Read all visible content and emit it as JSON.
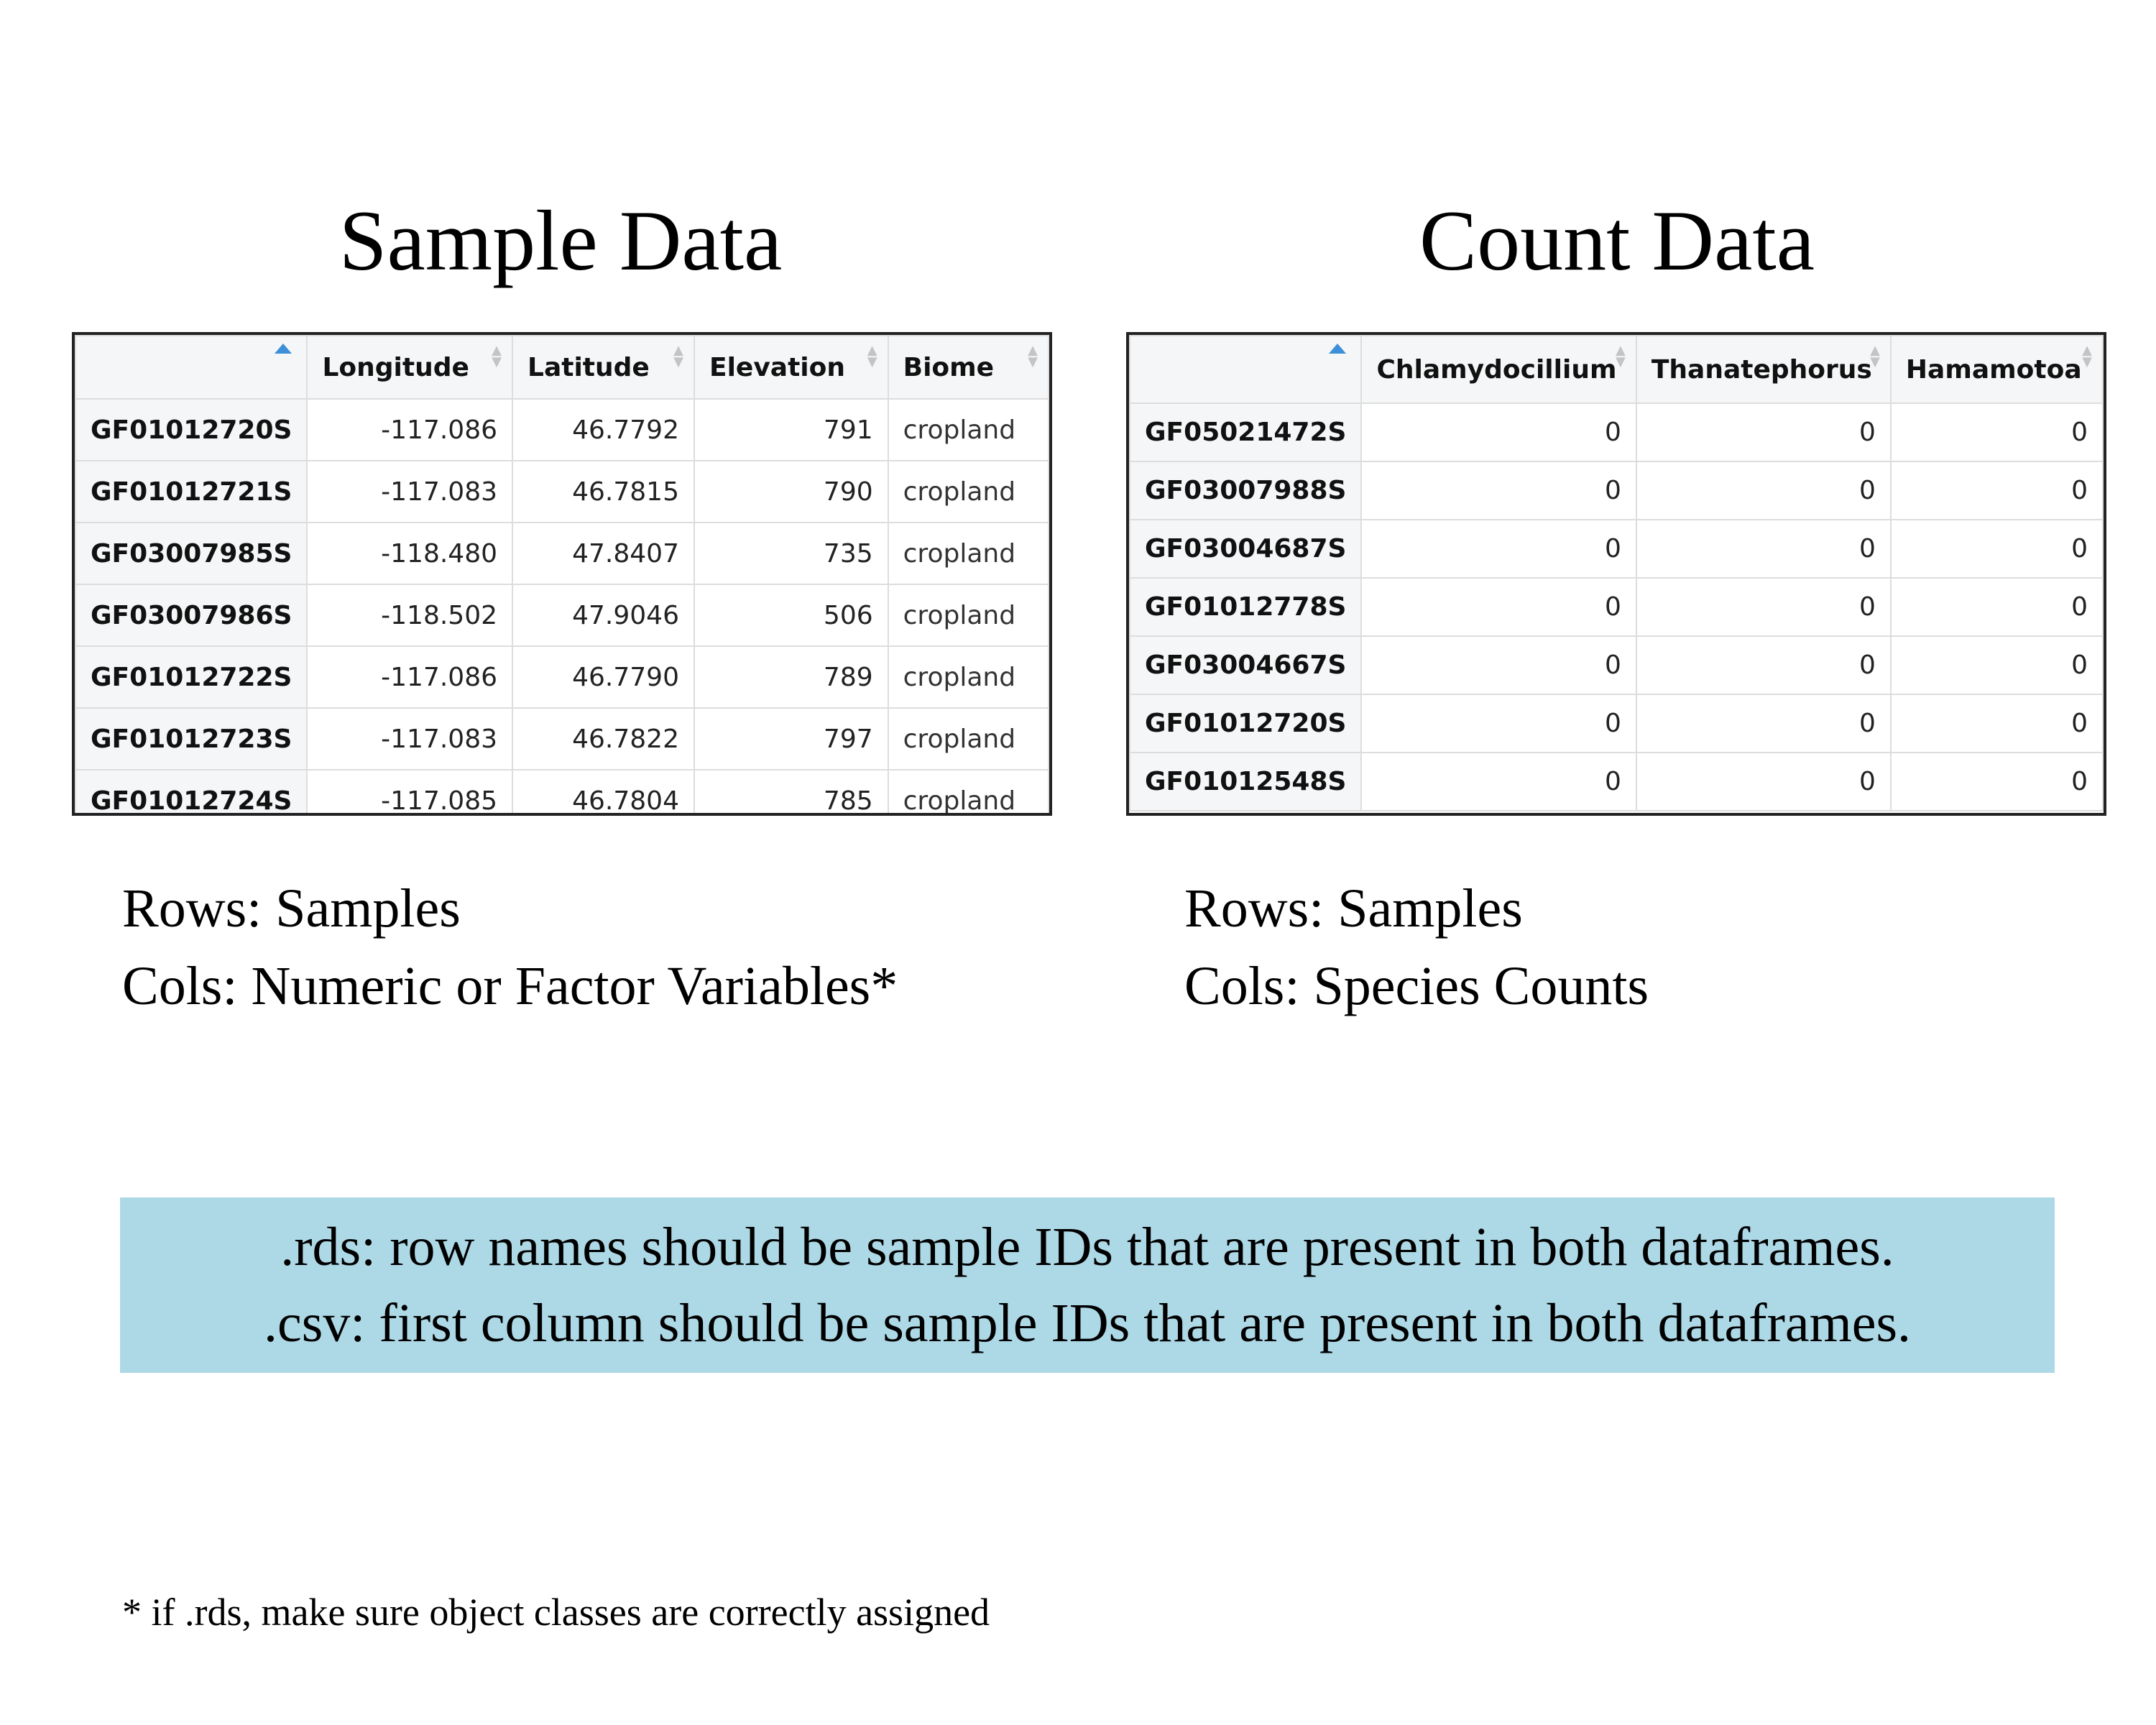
{
  "titles": {
    "sample": "Sample Data",
    "count": "Count Data"
  },
  "sample_table": {
    "columns": [
      "Longitude",
      "Latitude",
      "Elevation",
      "Biome"
    ],
    "rows": [
      {
        "id": "GF01012720S",
        "values": [
          "-117.086",
          "46.7792",
          "791",
          "cropland"
        ]
      },
      {
        "id": "GF01012721S",
        "values": [
          "-117.083",
          "46.7815",
          "790",
          "cropland"
        ]
      },
      {
        "id": "GF03007985S",
        "values": [
          "-118.480",
          "47.8407",
          "735",
          "cropland"
        ]
      },
      {
        "id": "GF03007986S",
        "values": [
          "-118.502",
          "47.9046",
          "506",
          "cropland"
        ]
      },
      {
        "id": "GF01012722S",
        "values": [
          "-117.086",
          "46.7790",
          "789",
          "cropland"
        ]
      },
      {
        "id": "GF01012723S",
        "values": [
          "-117.083",
          "46.7822",
          "797",
          "cropland"
        ]
      },
      {
        "id": "GF01012724S",
        "values": [
          "-117.085",
          "46.7804",
          "785",
          "cropland"
        ]
      }
    ]
  },
  "count_table": {
    "columns": [
      "Chlamydocillium",
      "Thanatephorus",
      "Hamamotoa"
    ],
    "rows": [
      {
        "id": "GF05021472S",
        "values": [
          "0",
          "0",
          "0"
        ]
      },
      {
        "id": "GF03007988S",
        "values": [
          "0",
          "0",
          "0"
        ]
      },
      {
        "id": "GF03004687S",
        "values": [
          "0",
          "0",
          "0"
        ]
      },
      {
        "id": "GF01012778S",
        "values": [
          "0",
          "0",
          "0"
        ]
      },
      {
        "id": "GF03004667S",
        "values": [
          "0",
          "0",
          "0"
        ]
      },
      {
        "id": "GF01012720S",
        "values": [
          "0",
          "0",
          "0"
        ]
      },
      {
        "id": "GF01012548S",
        "values": [
          "0",
          "0",
          "0"
        ]
      }
    ]
  },
  "descriptions": {
    "sample": {
      "rows": "Rows: Samples",
      "cols": "Cols: Numeric or Factor Variables*"
    },
    "count": {
      "rows": "Rows: Samples",
      "cols": "Cols: Species Counts"
    }
  },
  "note": {
    "line1": ".rds: row names should be sample IDs that are present in both dataframes.",
    "line2": ".csv: first column should be sample IDs that are present in both dataframes.",
    "background": "#add8e6"
  },
  "footnote": "* if .rds, make sure object classes are correctly assigned"
}
